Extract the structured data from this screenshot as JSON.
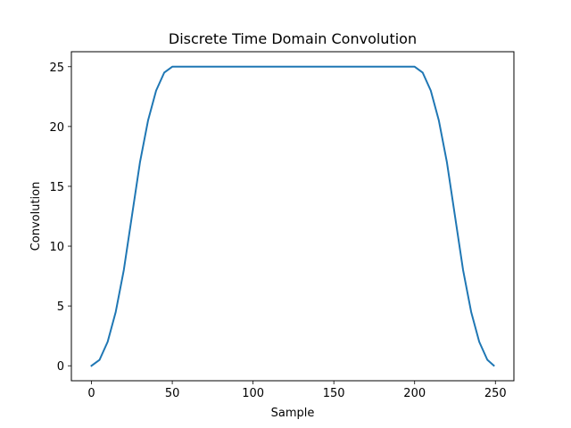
{
  "chart_data": {
    "type": "line",
    "title": "Discrete Time Domain Convolution",
    "xlabel": "Sample",
    "ylabel": "Convolution",
    "xlim": [
      -12.45,
      261.45
    ],
    "ylim": [
      -1.25,
      26.25
    ],
    "xticks": [
      0,
      50,
      100,
      150,
      200,
      250
    ],
    "yticks": [
      0,
      5,
      10,
      15,
      20,
      25
    ],
    "grid": false,
    "series": [
      {
        "color": "#1f77b4",
        "x": [
          0,
          5,
          10,
          15,
          20,
          25,
          30,
          35,
          40,
          45,
          50,
          75,
          100,
          125,
          150,
          175,
          200,
          205,
          210,
          215,
          220,
          225,
          230,
          235,
          240,
          245,
          249
        ],
        "y": [
          0,
          0.5,
          2.0,
          4.5,
          8.0,
          12.5,
          17.0,
          20.5,
          23.0,
          24.5,
          25,
          25,
          25,
          25,
          25,
          25,
          25,
          24.5,
          23.0,
          20.5,
          17.0,
          12.5,
          8.0,
          4.5,
          2.0,
          0.5,
          0.02
        ]
      }
    ]
  }
}
